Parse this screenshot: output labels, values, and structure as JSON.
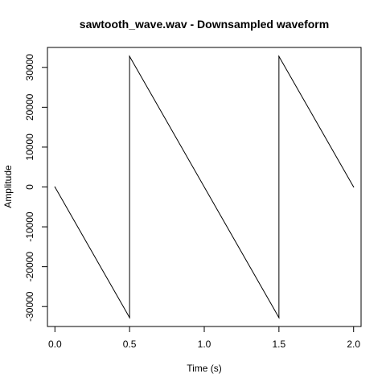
{
  "chart_data": {
    "type": "line",
    "title": "sawtooth_wave.wav - Downsampled waveform",
    "xlabel": "Time (s)",
    "ylabel": "Amplitude",
    "xlim": [
      -0.05,
      2.05
    ],
    "ylim": [
      -35000,
      35000
    ],
    "x_ticks": [
      0.0,
      0.5,
      1.0,
      1.5,
      2.0
    ],
    "x_tick_labels": [
      "0.0",
      "0.5",
      "1.0",
      "1.5",
      "2.0"
    ],
    "y_ticks": [
      -30000,
      -20000,
      -10000,
      0,
      10000,
      20000,
      30000
    ],
    "y_tick_labels": [
      "-30000",
      "-20000",
      "-10000",
      "0",
      "10000",
      "20000",
      "30000"
    ],
    "grid": false,
    "line_color": "#000000",
    "series": [
      {
        "x": [
          0.0,
          0.5,
          0.5,
          1.5,
          1.5,
          2.0
        ],
        "y": [
          0,
          -32768,
          32767,
          -32768,
          32767,
          0
        ]
      }
    ]
  }
}
